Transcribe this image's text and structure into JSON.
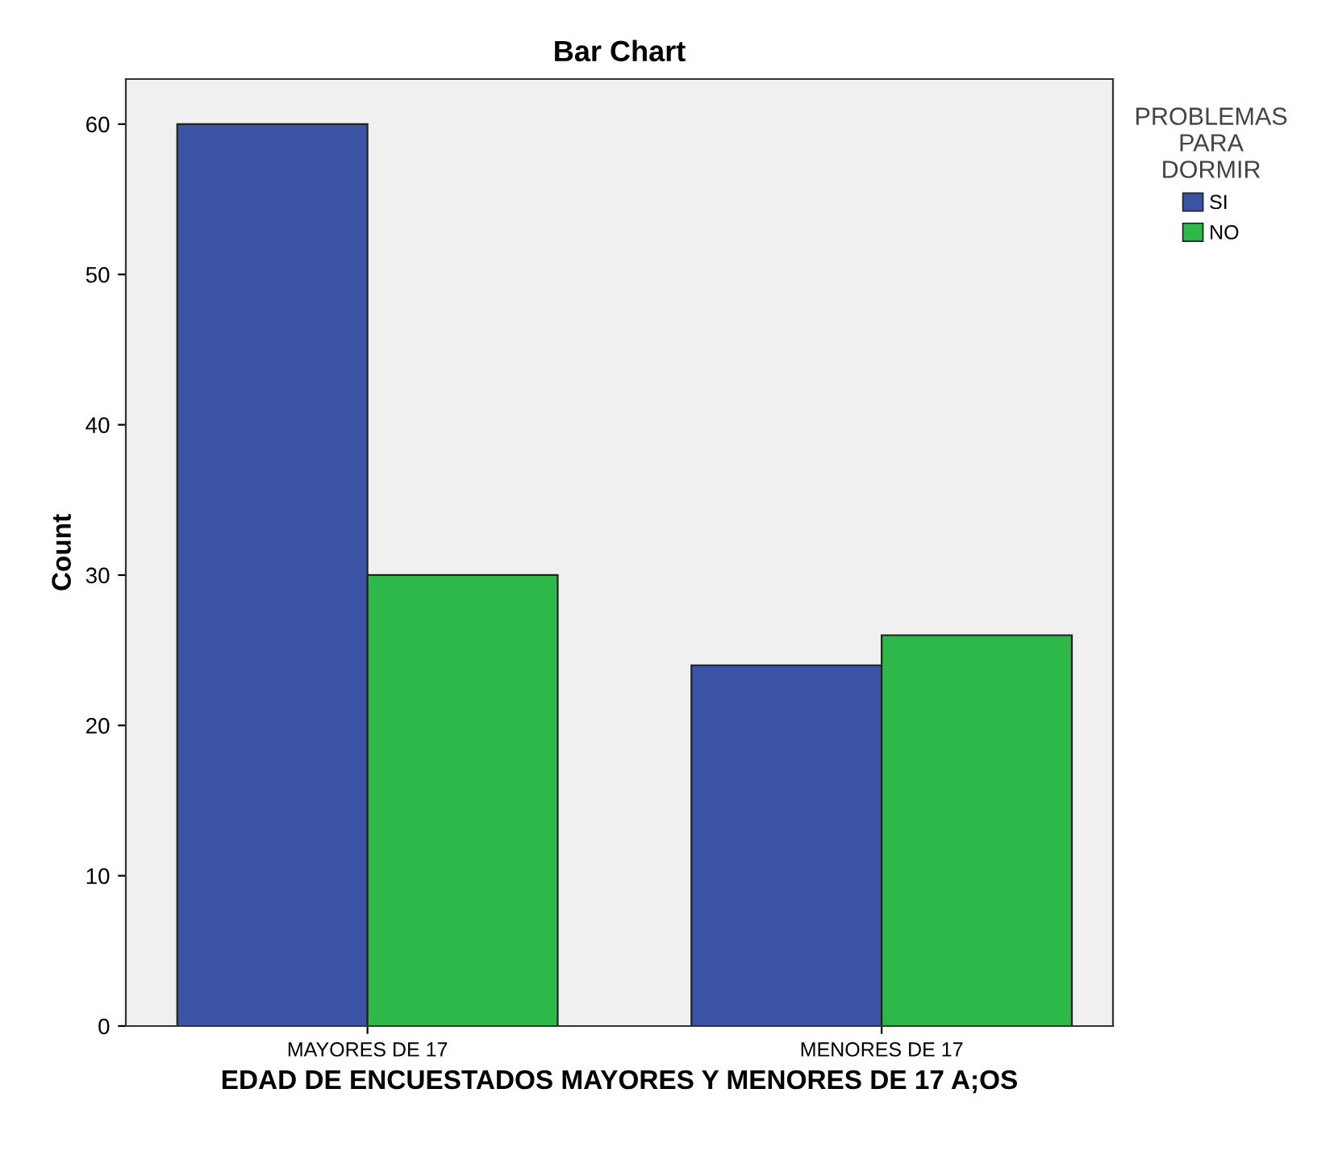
{
  "chart_data": {
    "type": "bar",
    "title": "Bar Chart",
    "xlabel": "EDAD DE ENCUESTADOS MAYORES Y MENORES DE 17 A;OS",
    "ylabel": "Count",
    "legend_title": "PROBLEMAS\nPARA\nDORMIR",
    "categories": [
      "MAYORES DE 17",
      "MENORES DE 17"
    ],
    "series": [
      {
        "name": "SI",
        "color": "#3a53a4",
        "values": [
          60,
          24
        ]
      },
      {
        "name": "NO",
        "color": "#2eb84a",
        "values": [
          30,
          26
        ]
      }
    ],
    "ylim": [
      0,
      63
    ],
    "yticks": [
      0,
      10,
      20,
      30,
      40,
      50,
      60
    ],
    "grid": false,
    "legend": "top right"
  }
}
